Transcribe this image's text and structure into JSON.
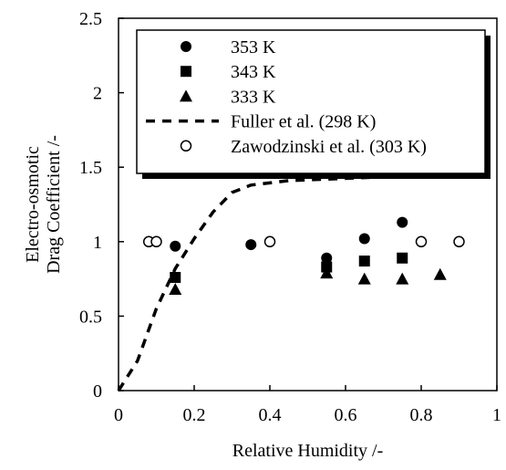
{
  "chart_data": {
    "type": "scatter",
    "xlabel": "Relative Humidity /-",
    "ylabel_lines": [
      "Electro-osmotic",
      "Drag Coefficient /-"
    ],
    "xlim": [
      0,
      1
    ],
    "ylim": [
      0,
      2.5
    ],
    "x_ticks": [
      0,
      0.2,
      0.4,
      0.6,
      0.8,
      1
    ],
    "x_tick_labels": [
      "0",
      "0.2",
      "0.4",
      "0.6",
      "0.8",
      "1"
    ],
    "y_ticks": [
      0,
      0.5,
      1,
      1.5,
      2,
      2.5
    ],
    "y_tick_labels": [
      "0",
      "0.5",
      "1",
      "1.5",
      "2",
      "2.5"
    ],
    "grid": false,
    "legend_position": "top-right",
    "series": [
      {
        "name": "353 K",
        "marker": "circle-filled",
        "points": [
          [
            0.15,
            0.97
          ],
          [
            0.35,
            0.98
          ],
          [
            0.55,
            0.89
          ],
          [
            0.65,
            1.02
          ],
          [
            0.75,
            1.13
          ]
        ]
      },
      {
        "name": "343 K",
        "marker": "square-filled",
        "points": [
          [
            0.15,
            0.76
          ],
          [
            0.55,
            0.83
          ],
          [
            0.65,
            0.87
          ],
          [
            0.75,
            0.89
          ]
        ]
      },
      {
        "name": "333 K",
        "marker": "triangle-filled",
        "points": [
          [
            0.15,
            0.68
          ],
          [
            0.55,
            0.79
          ],
          [
            0.65,
            0.75
          ],
          [
            0.75,
            0.75
          ],
          [
            0.85,
            0.78
          ]
        ]
      },
      {
        "name": "Fuller et al. (298 K)",
        "marker": "dashed-line",
        "points": [
          [
            0,
            0
          ],
          [
            0.05,
            0.2
          ],
          [
            0.1,
            0.55
          ],
          [
            0.15,
            0.82
          ],
          [
            0.2,
            1.02
          ],
          [
            0.25,
            1.2
          ],
          [
            0.3,
            1.33
          ],
          [
            0.35,
            1.38
          ],
          [
            0.45,
            1.41
          ],
          [
            0.55,
            1.42
          ],
          [
            0.65,
            1.43
          ],
          [
            0.75,
            1.44
          ],
          [
            0.88,
            1.48
          ]
        ]
      },
      {
        "name": "Zawodzinski et al. (303 K)",
        "marker": "circle-open",
        "points": [
          [
            0.08,
            1.0
          ],
          [
            0.1,
            1.0
          ],
          [
            0.4,
            1.0
          ],
          [
            0.8,
            1.0
          ],
          [
            0.9,
            1.0
          ]
        ]
      }
    ]
  }
}
